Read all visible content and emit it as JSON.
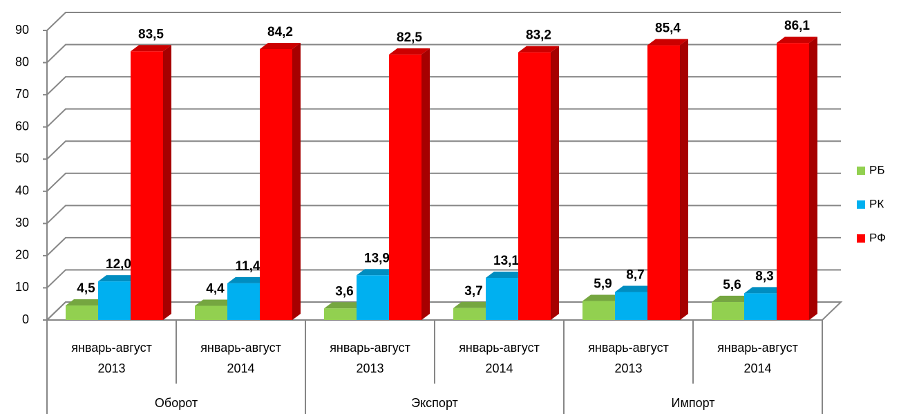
{
  "chart_data": {
    "type": "bar3d",
    "categories": [
      "январь-август 2013",
      "январь-август 2014",
      "январь-август 2013",
      "январь-август 2014",
      "январь-август 2013",
      "январь-август 2014"
    ],
    "groups": [
      "Оборот",
      "Экспорт",
      "Импорт"
    ],
    "series": [
      {
        "name": "РБ",
        "color": "#92d050",
        "values": [
          4.5,
          4.4,
          3.6,
          3.7,
          5.9,
          5.6
        ],
        "value_labels": [
          "4,5",
          "4,4",
          "3,6",
          "3,7",
          "5,9",
          "5,6"
        ]
      },
      {
        "name": "РК",
        "color": "#00b0f0",
        "values": [
          12.0,
          11.4,
          13.9,
          13.1,
          8.7,
          8.3
        ],
        "value_labels": [
          "12,0",
          "11,4",
          "13,9",
          "13,1",
          "8,7",
          "8,3"
        ]
      },
      {
        "name": "РФ",
        "color": "#ff0000",
        "values": [
          83.5,
          84.2,
          82.5,
          83.2,
          85.4,
          86.1
        ],
        "value_labels": [
          "83,5",
          "84,2",
          "82,5",
          "83,2",
          "85,4",
          "86,1"
        ]
      }
    ],
    "ylim": [
      0,
      90
    ],
    "yticks": [
      0,
      10,
      20,
      30,
      40,
      50,
      60,
      70,
      80,
      90
    ],
    "grid": true,
    "legend": "right"
  }
}
